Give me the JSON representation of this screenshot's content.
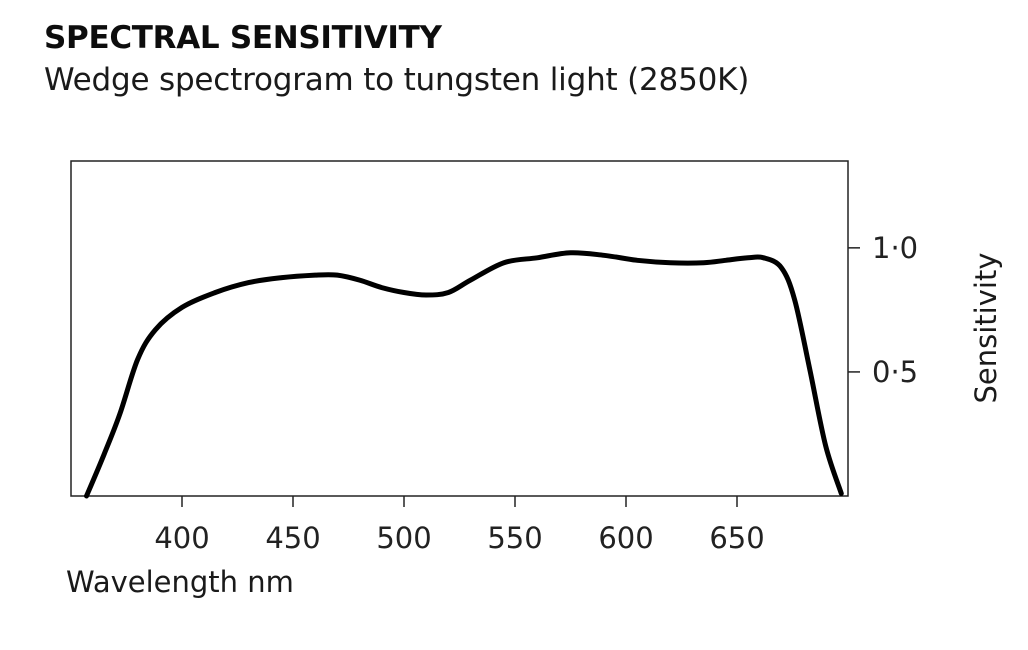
{
  "header": {
    "title": "SPECTRAL SENSITIVITY",
    "subtitle": "Wedge spectrogram to tungsten light (2850K)"
  },
  "chart_data": {
    "type": "line",
    "title": "SPECTRAL SENSITIVITY",
    "subtitle": "Wedge spectrogram to tungsten light (2850K)",
    "xlabel": "Wavelength nm",
    "ylabel": "Sensitivity",
    "xlim": [
      350,
      700
    ],
    "ylim": [
      0,
      1.35
    ],
    "x_ticks": [
      400,
      450,
      500,
      550,
      600,
      650
    ],
    "x_tick_labels": [
      "400",
      "450",
      "500",
      "550",
      "600",
      "650"
    ],
    "y_ticks": [
      1.0,
      0.5
    ],
    "y_tick_labels": [
      "1·0",
      "0·5"
    ],
    "y_axis_position": "right",
    "grid": false,
    "series": [
      {
        "x": [
          357,
          365,
          372,
          380,
          388,
          400,
          415,
          430,
          445,
          460,
          470,
          480,
          490,
          500,
          510,
          520,
          530,
          545,
          560,
          575,
          590,
          605,
          620,
          635,
          645,
          655,
          662,
          670,
          676,
          683,
          690,
          697
        ],
        "values": [
          0.0,
          0.17,
          0.33,
          0.55,
          0.67,
          0.76,
          0.82,
          0.86,
          0.88,
          0.89,
          0.89,
          0.87,
          0.84,
          0.82,
          0.81,
          0.82,
          0.87,
          0.94,
          0.96,
          0.98,
          0.97,
          0.95,
          0.94,
          0.94,
          0.95,
          0.96,
          0.96,
          0.92,
          0.79,
          0.5,
          0.2,
          0.01
        ]
      }
    ]
  }
}
